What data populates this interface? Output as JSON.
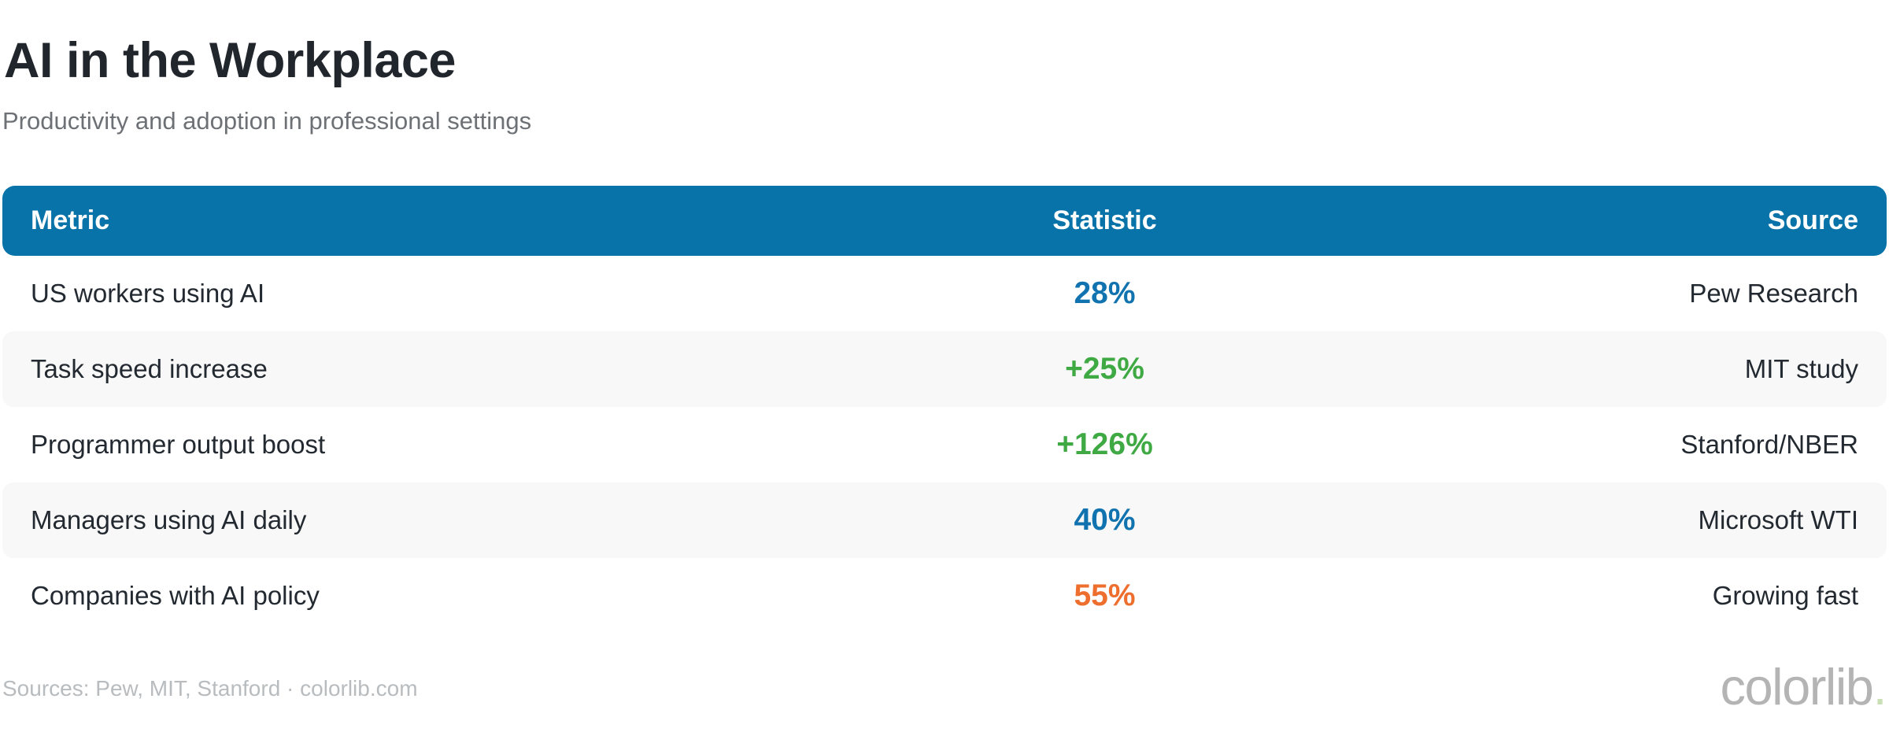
{
  "page": {
    "title": "AI in the Workplace",
    "subtitle": "Productivity and adoption in professional settings",
    "footer_sources": "Sources: Pew, MIT, Stanford · colorlib.com",
    "brand": {
      "name": "colorlib",
      "dot": "."
    }
  },
  "colors": {
    "header_bg": "#0873a9",
    "stripe_bg": "#f8f8f8",
    "text_dark": "#232930",
    "subtitle_gray": "#6d7175",
    "footer_gray": "#b9bcbf",
    "stat_blue": "#1073af",
    "stat_green": "#3fa943",
    "stat_orange": "#ee6e2e",
    "logo_gray": "#b4b4b4",
    "logo_dot_green": "#c8e0b4"
  },
  "table": {
    "columns": [
      {
        "key": "metric",
        "label": "Metric",
        "align": "left"
      },
      {
        "key": "statistic",
        "label": "Statistic",
        "align": "center"
      },
      {
        "key": "source",
        "label": "Source",
        "align": "right"
      }
    ],
    "rows": [
      {
        "metric": "US workers using AI",
        "statistic": "28%",
        "stat_color": "#1073af",
        "source": "Pew Research"
      },
      {
        "metric": "Task speed increase",
        "statistic": "+25%",
        "stat_color": "#3fa943",
        "source": "MIT study"
      },
      {
        "metric": "Programmer output boost",
        "statistic": "+126%",
        "stat_color": "#3fa943",
        "source": "Stanford/NBER"
      },
      {
        "metric": "Managers using AI daily",
        "statistic": "40%",
        "stat_color": "#1073af",
        "source": "Microsoft WTI"
      },
      {
        "metric": "Companies with AI policy",
        "statistic": "55%",
        "stat_color": "#ee6e2e",
        "source": "Growing fast"
      }
    ]
  },
  "chart_data": {
    "type": "table",
    "title": "AI in the Workplace",
    "subtitle": "Productivity and adoption in professional settings",
    "columns": [
      "Metric",
      "Statistic",
      "Source"
    ],
    "rows": [
      [
        "US workers using AI",
        "28%",
        "Pew Research"
      ],
      [
        "Task speed increase",
        "+25%",
        "MIT study"
      ],
      [
        "Programmer output boost",
        "+126%",
        "Stanford/NBER"
      ],
      [
        "Managers using AI daily",
        "40%",
        "Microsoft WTI"
      ],
      [
        "Companies with AI policy",
        "55%",
        "Growing fast"
      ]
    ],
    "numeric_values": [
      28,
      25,
      126,
      40,
      55
    ],
    "value_units": "percent",
    "layout_hints": {
      "header_style": "solid blue bar, white bold text, rounded corners",
      "row_striping": "alternate light-gray rounded bands (rows 2 and 4)",
      "statistic_colors": [
        "blue",
        "green",
        "green",
        "blue",
        "orange"
      ]
    }
  }
}
